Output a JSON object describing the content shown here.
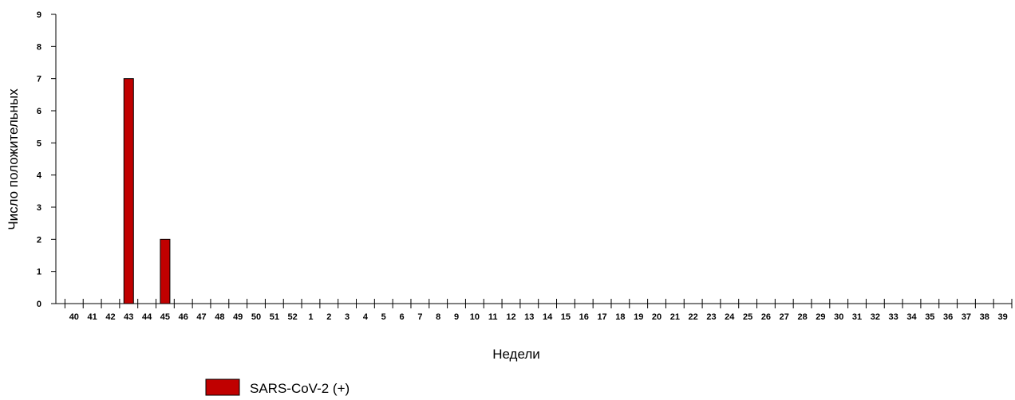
{
  "chart_data": {
    "type": "bar",
    "categories": [
      "40",
      "41",
      "42",
      "43",
      "44",
      "45",
      "46",
      "47",
      "48",
      "49",
      "50",
      "51",
      "52",
      "1",
      "2",
      "3",
      "4",
      "5",
      "6",
      "7",
      "8",
      "9",
      "10",
      "11",
      "12",
      "13",
      "14",
      "15",
      "16",
      "17",
      "18",
      "19",
      "20",
      "21",
      "22",
      "23",
      "24",
      "25",
      "26",
      "27",
      "28",
      "29",
      "30",
      "31",
      "32",
      "33",
      "34",
      "35",
      "36",
      "37",
      "38",
      "39"
    ],
    "series": [
      {
        "name": "SARS-CoV-2 (+)",
        "color": "#c00000",
        "values": [
          0,
          0,
          0,
          7,
          0,
          2,
          0,
          0,
          0,
          0,
          0,
          0,
          0,
          0,
          0,
          0,
          0,
          0,
          0,
          0,
          0,
          0,
          0,
          0,
          0,
          0,
          0,
          0,
          0,
          0,
          0,
          0,
          0,
          0,
          0,
          0,
          0,
          0,
          0,
          0,
          0,
          0,
          0,
          0,
          0,
          0,
          0,
          0,
          0,
          0,
          0,
          0
        ]
      }
    ],
    "xlabel": "Недели",
    "ylabel": "Число положительных",
    "ylim": [
      0,
      9
    ],
    "yticks": [
      "0",
      "1",
      "2",
      "3",
      "4",
      "5",
      "6",
      "7",
      "8",
      "9"
    ],
    "grid": false,
    "legend_position": "bottom-left"
  }
}
